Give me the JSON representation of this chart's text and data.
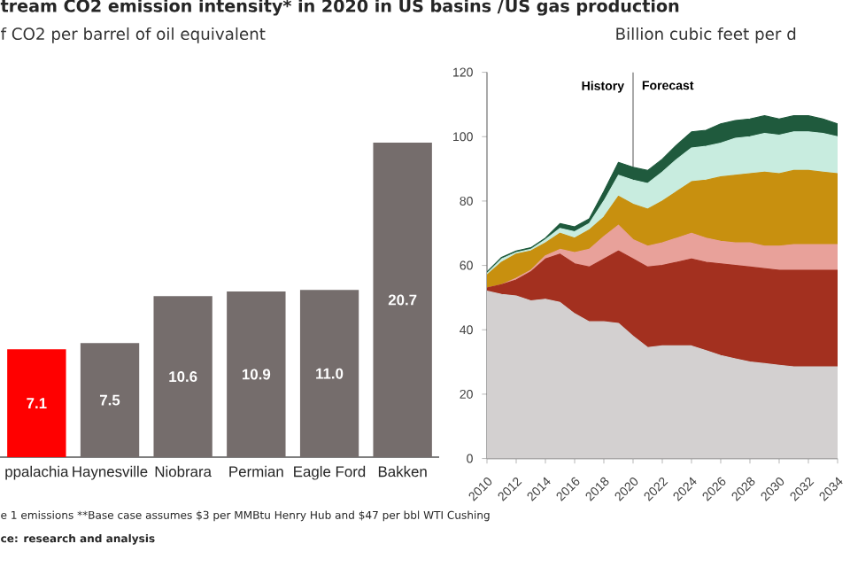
{
  "chart_data": [
    {
      "type": "bar",
      "title": "tream CO2 emission intensity* in 2020 in US basins /",
      "subtitle": "f CO2 per barrel of oil equivalent",
      "categories": [
        "ppalachia",
        "Haynesville",
        "Niobrara",
        "Permian",
        "Eagle Ford",
        "Bakken"
      ],
      "values": [
        7.1,
        7.5,
        10.6,
        10.9,
        11.0,
        20.7
      ],
      "value_labels": [
        "7.1",
        "7.5",
        "10.6",
        "10.9",
        "11.0",
        "20.7"
      ],
      "colors": [
        "#ff0000",
        "#756d6c",
        "#756d6c",
        "#756d6c",
        "#756d6c",
        "#756d6c"
      ],
      "tick_labels": "x",
      "annotations": [
        "e 1 emissions **Base case assumes $3 per MMBtu Henry Hub and $47 per bbl WTI Cushing",
        "ce: research and analysis"
      ]
    },
    {
      "type": "area",
      "title": "US gas production",
      "subtitle": "Billion cubic feet per d",
      "stacked": true,
      "x": [
        2010,
        2011,
        2012,
        2013,
        2014,
        2015,
        2016,
        2017,
        2018,
        2019,
        2020,
        2021,
        2022,
        2023,
        2024,
        2025,
        2026,
        2027,
        2028,
        2029,
        2030,
        2031,
        2032,
        2033,
        2034
      ],
      "series": [
        {
          "color": "#d3d0d0",
          "values": [
            52,
            51,
            50.5,
            49,
            49.5,
            48.5,
            45,
            42.5,
            42.5,
            42,
            38,
            34.5,
            35,
            35,
            35,
            33.5,
            32,
            31,
            30,
            29.5,
            29,
            28.5,
            28.5,
            28.5,
            28.5
          ]
        },
        {
          "color": "#a3301f",
          "values": [
            1,
            3,
            5,
            9,
            12.5,
            15,
            15.5,
            17,
            19.5,
            22.5,
            24,
            25,
            25,
            26,
            27,
            27.5,
            28.5,
            29,
            29.5,
            29.5,
            29.5,
            30,
            30,
            30,
            30
          ]
        },
        {
          "color": "#e8a19a",
          "values": [
            0,
            0,
            0.5,
            0.5,
            1,
            1.5,
            3.5,
            5.5,
            7,
            8,
            6,
            6.5,
            7,
            7.5,
            8,
            7.5,
            7,
            7,
            7.5,
            7,
            7.5,
            8,
            8,
            8,
            8
          ]
        },
        {
          "color": "#c8900f",
          "values": [
            4,
            7,
            7.5,
            6,
            4,
            5,
            4.5,
            6,
            6,
            9,
            11,
            11.5,
            13,
            14.5,
            16,
            18,
            20,
            21,
            21.5,
            23,
            22.5,
            23,
            23,
            22.5,
            22
          ]
        },
        {
          "color": "#c8ecdf",
          "values": [
            0.5,
            1,
            0.5,
            0.5,
            1,
            1.5,
            2,
            2,
            5,
            6.5,
            7.5,
            8,
            9,
            10,
            10.5,
            10.5,
            10.5,
            11.5,
            11.5,
            12,
            12,
            12,
            12,
            12,
            11.5
          ]
        },
        {
          "color": "#1f5a3d",
          "values": [
            0.5,
            0.5,
            0.5,
            0.5,
            0.5,
            1.5,
            1.5,
            1.5,
            3,
            4,
            4,
            4,
            4,
            4.5,
            5,
            5,
            6,
            5.5,
            5.5,
            5.5,
            5,
            5,
            5,
            4.5,
            4
          ]
        }
      ],
      "xlim": [
        2010,
        2034
      ],
      "xticks": [
        2010,
        2012,
        2014,
        2016,
        2018,
        2020,
        2022,
        2024,
        2026,
        2028,
        2030,
        2032,
        2034
      ],
      "ylim": [
        0,
        120
      ],
      "yticks": [
        0,
        20,
        40,
        60,
        80,
        100,
        120
      ],
      "ref_lines": [
        {
          "axis": "x",
          "value": 2020,
          "color": "#999999"
        }
      ],
      "annotations": [
        "History",
        "Forecast"
      ]
    }
  ]
}
